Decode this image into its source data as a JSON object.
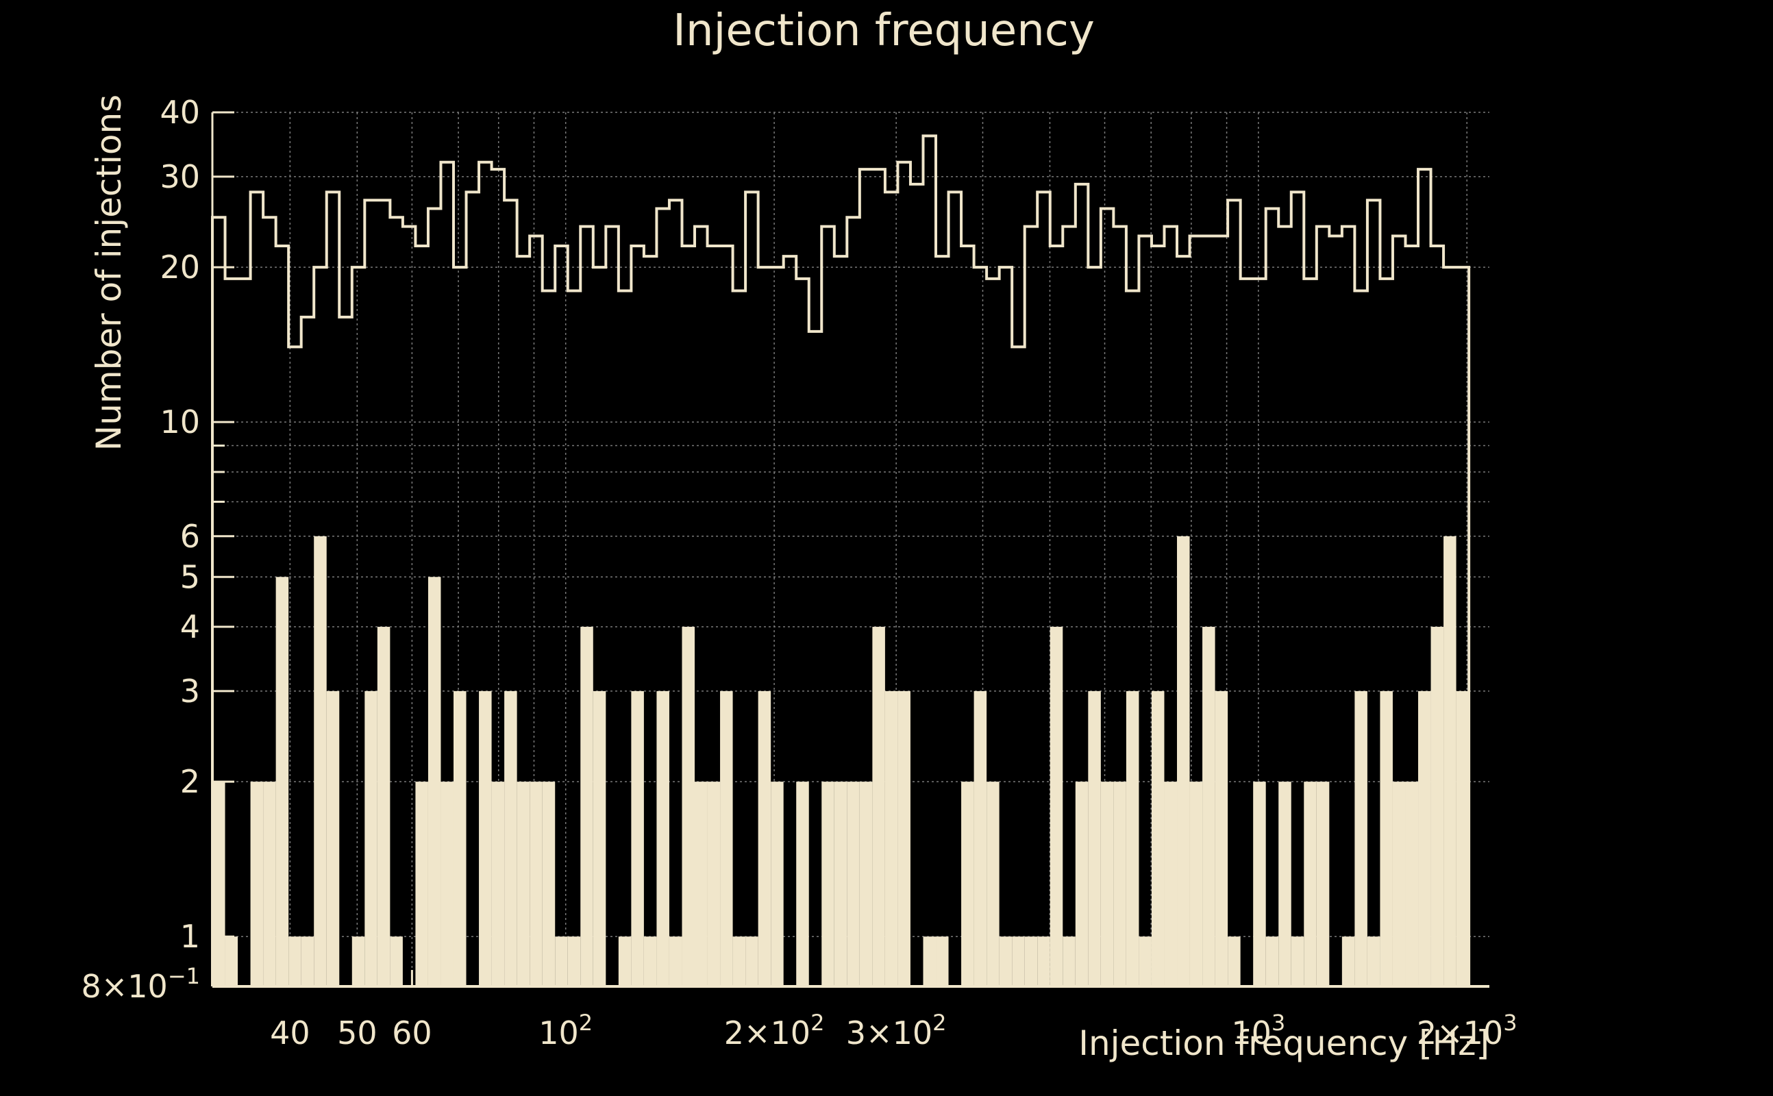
{
  "chart_data": {
    "type": "bar",
    "title": "Injection frequency",
    "xlabel": "Injection frequency [Hz]",
    "ylabel": "Number of injections",
    "x_scale": "log",
    "y_scale": "log",
    "xlim": [
      30.9,
      2155
    ],
    "ylim": [
      0.8,
      40
    ],
    "grid": true,
    "x_ticks": [
      {
        "value": 40,
        "label": "40"
      },
      {
        "value": 50,
        "label": "50"
      },
      {
        "value": 60,
        "label": "60"
      },
      {
        "value": 100,
        "label": "10",
        "sup": "2"
      },
      {
        "value": 200,
        "label": "2×10",
        "sup": "2"
      },
      {
        "value": 300,
        "label": "3×10",
        "sup": "2"
      },
      {
        "value": 1000,
        "label": "10",
        "sup": "3"
      },
      {
        "value": 2000,
        "label": "2×10",
        "sup": "3"
      }
    ],
    "y_ticks": [
      {
        "value": 0.8,
        "label": "8×10",
        "sup": "−1"
      },
      {
        "value": 1,
        "label": "1"
      },
      {
        "value": 2,
        "label": "2"
      },
      {
        "value": 3,
        "label": "3"
      },
      {
        "value": 4,
        "label": "4"
      },
      {
        "value": 5,
        "label": "5"
      },
      {
        "value": 6,
        "label": "6"
      },
      {
        "value": 10,
        "label": "10"
      },
      {
        "value": 20,
        "label": "20"
      },
      {
        "value": 30,
        "label": "30"
      },
      {
        "value": 40,
        "label": "40"
      }
    ],
    "x_minor_grid": [
      70,
      80,
      90,
      400,
      500,
      600,
      700,
      800,
      900
    ],
    "y_minor_grid": [
      7,
      8,
      9
    ],
    "x_range": [
      30.9,
      2100
    ],
    "bin_count": 100,
    "colors": {
      "background": "#000000",
      "foreground": "#f0e6cb",
      "grid": "#7a7a7a"
    },
    "series": [
      {
        "style": "filled",
        "values": [
          2,
          1,
          0,
          2,
          2,
          5,
          1,
          1,
          6,
          3,
          0,
          1,
          3,
          4,
          1,
          0,
          2,
          5,
          2,
          3,
          0,
          3,
          2,
          3,
          2,
          2,
          2,
          1,
          1,
          4,
          3,
          0,
          1,
          3,
          1,
          3,
          1,
          4,
          2,
          2,
          3,
          1,
          1,
          3,
          2,
          0,
          2,
          0,
          2,
          2,
          2,
          2,
          4,
          3,
          3,
          0,
          1,
          1,
          0,
          2,
          3,
          2,
          1,
          1,
          1,
          1,
          4,
          1,
          2,
          3,
          2,
          2,
          3,
          1,
          3,
          2,
          6,
          2,
          4,
          3,
          1,
          0,
          2,
          1,
          2,
          1,
          2,
          2,
          0,
          1,
          3,
          1,
          3,
          2,
          2,
          3,
          4,
          6,
          3,
          0
        ]
      },
      {
        "style": "step",
        "values": [
          25,
          19,
          19,
          28,
          25,
          22,
          14,
          16,
          20,
          28,
          16,
          20,
          27,
          27,
          25,
          24,
          22,
          26,
          32,
          20,
          28,
          32,
          31,
          27,
          21,
          23,
          18,
          22,
          18,
          24,
          20,
          24,
          18,
          22,
          21,
          26,
          27,
          22,
          24,
          22,
          22,
          18,
          28,
          20,
          20,
          21,
          19,
          15,
          24,
          21,
          25,
          31,
          31,
          28,
          32,
          29,
          36,
          21,
          28,
          22,
          20,
          19,
          20,
          14,
          24,
          28,
          22,
          24,
          29,
          20,
          26,
          24,
          18,
          23,
          22,
          24,
          21,
          23,
          23,
          23,
          27,
          19,
          19,
          26,
          24,
          28,
          19,
          24,
          23,
          24,
          18,
          27,
          19,
          23,
          22,
          31,
          22,
          20,
          20,
          0
        ]
      }
    ]
  }
}
